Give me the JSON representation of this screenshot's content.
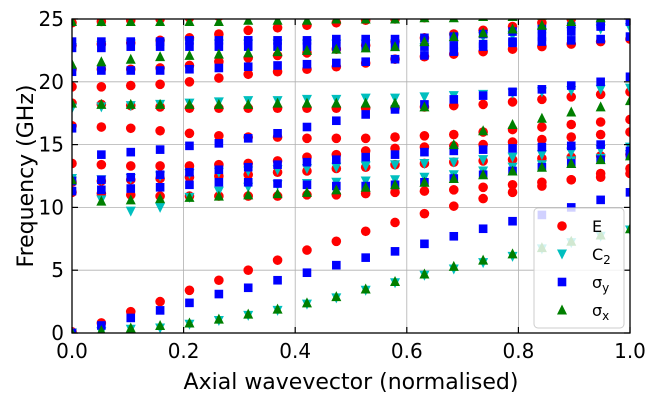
{
  "chart_data": {
    "type": "scatter",
    "title": "",
    "xlabel": "Axial wavevector (normalised)",
    "ylabel": "Frequency (GHz)",
    "xlim": [
      0.0,
      1.0
    ],
    "ylim": [
      0,
      25
    ],
    "xticks": [
      "0.0",
      "0.2",
      "0.4",
      "0.6",
      "0.8",
      "1.0"
    ],
    "yticks": [
      "0",
      "5",
      "10",
      "15",
      "20",
      "25"
    ],
    "grid": true,
    "legend_position": "bottom-right",
    "x": [
      0.0,
      0.0526,
      0.1053,
      0.1579,
      0.2105,
      0.2632,
      0.3158,
      0.3684,
      0.4211,
      0.4737,
      0.5263,
      0.5789,
      0.6316,
      0.6842,
      0.7368,
      0.7895,
      0.8421,
      0.8947,
      0.9474,
      1.0
    ],
    "series": [
      {
        "name": "E",
        "legend_label": "E",
        "color": "#ff0000",
        "marker": "circle",
        "bands": [
          [
            0.1,
            0.8,
            1.7,
            2.5,
            3.4,
            4.2,
            5.0,
            5.8,
            6.6,
            7.3,
            8.1,
            8.8,
            9.5,
            10.1,
            10.7,
            11.2,
            11.7,
            12.2,
            12.7,
            13.1
          ],
          [
            11.2,
            11.1,
            11.0,
            10.9,
            10.9,
            10.9,
            10.9,
            10.9,
            11.0,
            11.0,
            11.1,
            11.2,
            11.3,
            11.4,
            11.6,
            11.8,
            12.0,
            12.2,
            12.4,
            12.7
          ],
          [
            12.0,
            12.1,
            12.2,
            12.3,
            12.4,
            12.5,
            12.6,
            12.8,
            12.9,
            13.1,
            13.2,
            13.4,
            13.5,
            13.6,
            13.7,
            13.8,
            13.9,
            14.0,
            14.1,
            14.2
          ],
          [
            13.5,
            13.4,
            13.3,
            13.3,
            13.3,
            13.4,
            13.5,
            13.7,
            14.0,
            14.2,
            14.5,
            14.7,
            14.8,
            14.9,
            15.0,
            15.2,
            15.4,
            15.6,
            15.8,
            16.0
          ],
          [
            16.5,
            16.4,
            16.3,
            16.1,
            15.9,
            15.7,
            15.6,
            15.6,
            15.5,
            15.5,
            15.5,
            15.6,
            15.7,
            15.8,
            16.0,
            16.2,
            16.4,
            16.6,
            16.8,
            17.0
          ],
          [
            18.3,
            18.2,
            18.1,
            18.0,
            17.9,
            17.9,
            17.9,
            17.9,
            17.9,
            17.9,
            17.9,
            17.9,
            18.0,
            18.1,
            18.2,
            18.4,
            18.6,
            18.8,
            19.0,
            19.2
          ],
          [
            19.6,
            19.6,
            19.7,
            19.8,
            20.0,
            20.3,
            20.6,
            20.8,
            21.0,
            21.2,
            21.5,
            21.8,
            22.0,
            22.2,
            22.4,
            22.6,
            22.8,
            23.0,
            23.2,
            23.4
          ],
          [
            21.0,
            21.0,
            21.0,
            21.1,
            21.3,
            21.6,
            21.9,
            22.1,
            22.3,
            22.6,
            22.9,
            23.2,
            23.5,
            23.8,
            24.1,
            24.4,
            24.7,
            25.0,
            25.2,
            25.4
          ],
          [
            22.9,
            23.0,
            23.1,
            23.3,
            23.5,
            23.8,
            24.1,
            24.3,
            24.5,
            24.7,
            24.9,
            25.0,
            25.1,
            25.2,
            25.3,
            25.4,
            25.5,
            25.6,
            25.7,
            25.8
          ],
          [
            24.7,
            24.8,
            24.9,
            25.0,
            25.1,
            25.2,
            25.3,
            25.4,
            25.5,
            25.6,
            25.7,
            25.8,
            25.9,
            26.0,
            26.1,
            26.2,
            26.3,
            26.4,
            26.5,
            26.6
          ]
        ]
      },
      {
        "name": "C2",
        "legend_label": "C",
        "legend_sub": "2",
        "color": "#00bfbf",
        "marker": "triangle-down",
        "bands": [
          [
            0.0,
            0.1,
            0.3,
            0.4,
            0.7,
            1.0,
            1.4,
            1.8,
            2.3,
            2.8,
            3.4,
            4.0,
            4.6,
            5.1,
            5.6,
            6.1,
            6.7,
            7.2,
            7.7,
            8.2
          ],
          [
            12.1,
            10.6,
            9.7,
            10.0,
            10.8,
            11.3,
            11.6,
            11.8,
            11.9,
            12.0,
            12.1,
            12.2,
            12.4,
            12.6,
            12.9,
            13.2,
            13.4,
            13.7,
            13.9,
            14.2
          ],
          [
            12.3,
            12.2,
            12.3,
            12.5,
            12.7,
            12.8,
            12.9,
            13.0,
            13.1,
            13.2,
            13.3,
            13.4,
            13.5,
            13.6,
            13.8,
            14.0,
            14.2,
            14.4,
            14.6,
            14.8
          ],
          [
            22.7,
            22.9,
            23.0,
            23.0,
            23.0,
            23.0,
            23.0,
            23.0,
            23.0,
            23.0,
            23.0,
            23.0,
            22.7,
            23.5,
            23.6,
            23.7,
            23.9,
            24.0,
            24.2,
            24.3
          ],
          [
            17.9,
            18.0,
            18.1,
            18.2,
            18.3,
            18.4,
            18.5,
            18.5,
            18.6,
            18.6,
            18.7,
            18.7,
            18.8,
            18.9,
            19.0,
            19.1,
            19.2,
            19.3,
            19.4,
            19.5
          ]
        ]
      },
      {
        "name": "σy",
        "legend_label": "σ",
        "legend_sub": "y",
        "color": "#0000ff",
        "marker": "square",
        "bands": [
          [
            0.0,
            0.6,
            1.2,
            1.8,
            2.4,
            3.1,
            3.6,
            4.2,
            4.8,
            5.4,
            6.0,
            6.5,
            7.1,
            7.7,
            8.3,
            8.9,
            9.4,
            10.0,
            10.6,
            11.2
          ],
          [
            11.3,
            11.4,
            11.5,
            11.6,
            11.8,
            12.0,
            12.0,
            11.9,
            11.8,
            11.7,
            11.7,
            11.8,
            12.0,
            12.3,
            12.6,
            12.9,
            13.2,
            13.5,
            13.8,
            14.2
          ],
          [
            12.1,
            12.2,
            12.4,
            12.6,
            12.8,
            13.0,
            13.2,
            13.4,
            13.6,
            13.8,
            14.0,
            14.2,
            14.4,
            14.5,
            14.6,
            14.7,
            14.8,
            14.9,
            15.0,
            14.5
          ],
          [
            16.3,
            14.2,
            14.4,
            14.6,
            14.9,
            15.1,
            15.5,
            15.9,
            16.4,
            16.9,
            17.4,
            17.8,
            18.2,
            18.6,
            18.9,
            19.2,
            19.4,
            19.7,
            20.0,
            20.4
          ],
          [
            20.8,
            20.9,
            20.9,
            20.9,
            21.0,
            21.1,
            21.2,
            21.3,
            21.4,
            21.5,
            21.6,
            21.8,
            22.1,
            22.4,
            22.8,
            23.2,
            23.6,
            24.0,
            24.4,
            24.8
          ],
          [
            22.7,
            22.7,
            22.8,
            22.8,
            22.8,
            22.8,
            22.8,
            22.8,
            22.8,
            22.8,
            22.8,
            22.8,
            22.8,
            22.9,
            23.0,
            23.1,
            23.2,
            23.3,
            23.4,
            23.6
          ],
          [
            23.2,
            23.2,
            23.2,
            23.2,
            23.3,
            23.3,
            23.3,
            23.3,
            23.3,
            23.4,
            23.4,
            23.4,
            23.5,
            23.6,
            23.8,
            24.0,
            24.2,
            24.4,
            24.6,
            24.8
          ]
        ]
      },
      {
        "name": "σx",
        "legend_label": "σ",
        "legend_sub": "x",
        "color": "#007f00",
        "marker": "triangle-up",
        "bands": [
          [
            0.0,
            0.2,
            0.4,
            0.6,
            0.8,
            1.1,
            1.5,
            1.9,
            2.4,
            2.9,
            3.5,
            4.1,
            4.7,
            5.3,
            5.8,
            6.3,
            6.8,
            7.3,
            7.8,
            8.3
          ],
          [
            12.2,
            10.5,
            10.6,
            10.7,
            10.8,
            10.9,
            11.0,
            11.1,
            11.2,
            11.4,
            11.6,
            11.8,
            12.0,
            12.3,
            12.6,
            12.9,
            13.2,
            13.5,
            13.8,
            14.1
          ],
          [
            18.3,
            18.2,
            18.2,
            18.2,
            18.2,
            18.2,
            18.2,
            18.3,
            18.3,
            18.3,
            18.3,
            18.3,
            18.0,
            15.0,
            16.1,
            16.6,
            17.1,
            17.6,
            18.0,
            18.5
          ],
          [
            21.4,
            21.6,
            21.8,
            22.0,
            22.1,
            22.2,
            22.3,
            22.4,
            22.5,
            22.6,
            22.7,
            22.8,
            23.2,
            23.6,
            23.9,
            24.2,
            24.5,
            24.8,
            25.1,
            25.4
          ],
          [
            24.8,
            24.8,
            24.8,
            24.8,
            24.8,
            24.8,
            24.9,
            24.9,
            24.9,
            25.0,
            25.0,
            25.0,
            25.1,
            25.1,
            25.2,
            25.2,
            25.3,
            25.3,
            25.4,
            25.4
          ]
        ]
      }
    ]
  }
}
